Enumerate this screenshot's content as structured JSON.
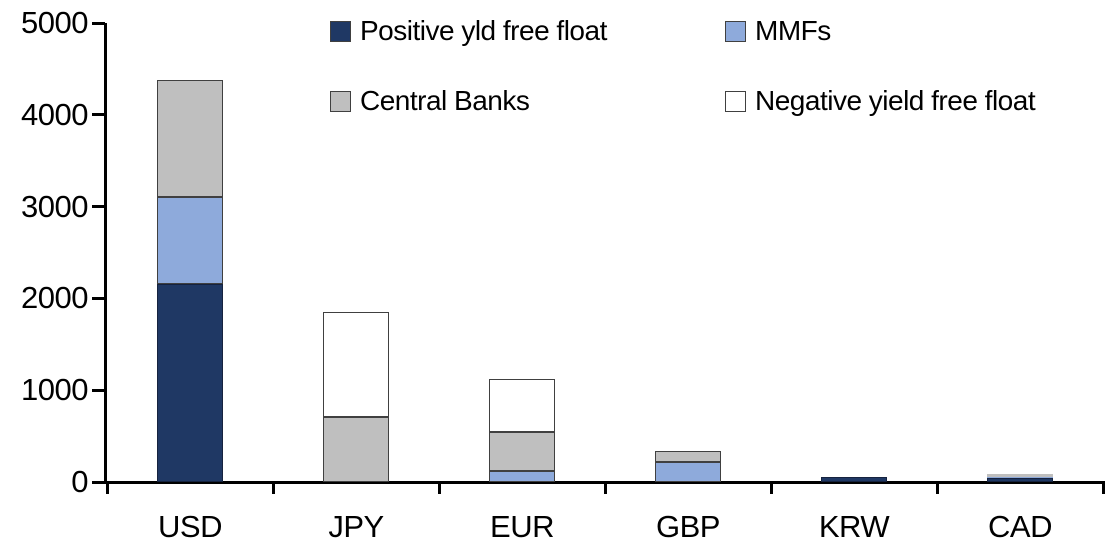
{
  "chart_data": {
    "type": "bar",
    "stacked": true,
    "title": "",
    "xlabel": "",
    "ylabel": "",
    "categories": [
      "USD",
      "JPY",
      "EUR",
      "GBP",
      "KRW",
      "CAD"
    ],
    "series": [
      {
        "name": "Positive yld free float",
        "color": "#1F3864",
        "border": "#16233F",
        "values": [
          2160,
          0,
          0,
          0,
          50,
          45
        ]
      },
      {
        "name": "MMFs",
        "color": "#8EAADB",
        "border": "#404040",
        "values": [
          940,
          0,
          120,
          220,
          0,
          10
        ]
      },
      {
        "name": "Central Banks",
        "color": "#BFBFBF",
        "border": "#404040",
        "values": [
          1280,
          710,
          425,
          115,
          0,
          30
        ]
      },
      {
        "name": "Negative yield free float",
        "color": "#FFFFFF",
        "border": "#404040",
        "values": [
          0,
          1140,
          575,
          0,
          0,
          0
        ]
      }
    ],
    "totals": {
      "USD": 4380,
      "JPY": 1850,
      "EUR": 1120,
      "GBP": 335,
      "KRW": 50,
      "CAD": 85
    },
    "ylim": [
      0,
      5000
    ],
    "ytick_interval": 1000,
    "yticks": [
      "0",
      "1000",
      "2000",
      "3000",
      "4000",
      "5000"
    ],
    "grid": false,
    "legend_position": "top"
  },
  "colors": {
    "axis": "#000000",
    "background": "#FFFFFF",
    "segment_border": "#404040"
  }
}
